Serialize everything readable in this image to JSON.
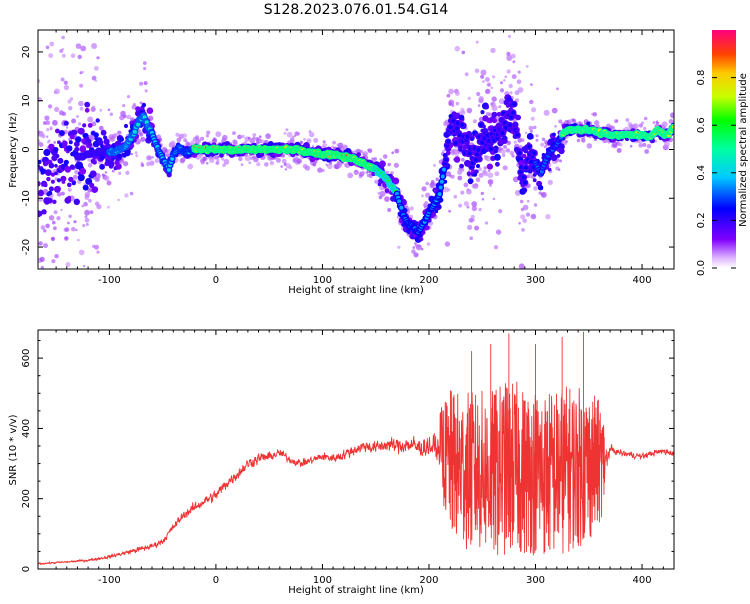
{
  "title": "S128.2023.076.01.54.G14",
  "chart_data": [
    {
      "type": "heatmap",
      "xlabel": "Height of straight line (km)",
      "ylabel": "Frequency (Hz)",
      "xlim": [
        -167,
        430
      ],
      "ylim": [
        -24.5,
        24.5
      ],
      "xticks": [
        -100,
        0,
        100,
        200,
        300,
        400
      ],
      "yticks": [
        -20,
        -10,
        0,
        10,
        20
      ],
      "colorbar": {
        "label": "Normalized spectral amplitude",
        "range": [
          0.0,
          1.0
        ],
        "ticks": [
          "0.0",
          "0.2",
          "0.4",
          "0.6",
          "0.8"
        ]
      },
      "ridge": {
        "height_km": [
          -165,
          -150,
          -130,
          -110,
          -95,
          -85,
          -78,
          -72,
          -68,
          -64,
          -58,
          -52,
          -47,
          -44,
          -40,
          -35,
          -30,
          -25,
          -20,
          0,
          20,
          50,
          75,
          90,
          100,
          110,
          120,
          130,
          140,
          150,
          160,
          170,
          175,
          180,
          185,
          190,
          195,
          200,
          205,
          210,
          215,
          220,
          230,
          240,
          250,
          260,
          270,
          275,
          280,
          283,
          286,
          288,
          290,
          292,
          295,
          300,
          305,
          310,
          315,
          320,
          325,
          330,
          335,
          340,
          350,
          360,
          370,
          380,
          390,
          400,
          405,
          410,
          415,
          420,
          425,
          430
        ],
        "frequency_hz": [
          -6,
          -3,
          -1.5,
          -0.5,
          -0.5,
          0.5,
          3,
          6,
          7,
          5,
          2,
          -1,
          -3,
          -4,
          -1,
          0.5,
          -0.5,
          -0.5,
          0,
          0,
          0,
          0,
          0,
          -0.5,
          -1,
          -1,
          -1.5,
          -2,
          -3,
          -4,
          -6,
          -9,
          -13,
          -15,
          -16,
          -17,
          -15,
          -13,
          -11,
          -9,
          -3,
          5,
          3,
          -2,
          3,
          2,
          5,
          8,
          7,
          2,
          -4,
          -6,
          -5,
          -3,
          -1,
          -3,
          -5,
          -2,
          0,
          1,
          3,
          4,
          4,
          4,
          4,
          3.5,
          3,
          3,
          3,
          3,
          2.5,
          3,
          4,
          3,
          3,
          5
        ]
      },
      "intensity_levels": [
        0.0,
        0.2,
        0.4,
        0.6,
        0.8,
        1.0
      ]
    },
    {
      "type": "line",
      "xlabel": "Height of straight line (km)",
      "ylabel": "SNR (10 * v/v)",
      "xlim": [
        -167,
        430
      ],
      "ylim": [
        0,
        680
      ],
      "xticks": [
        -100,
        0,
        100,
        200,
        300,
        400
      ],
      "yticks": [
        0,
        200,
        400,
        600
      ],
      "series": [
        {
          "color": "#ee3333",
          "envelope": {
            "x": [
              -167,
              -140,
              -120,
              -100,
              -80,
              -60,
              -50,
              -40,
              -30,
              -20,
              -10,
              0,
              10,
              20,
              30,
              40,
              50,
              60,
              70,
              80,
              90,
              100,
              110,
              120,
              130,
              140,
              150,
              160,
              170,
              180,
              190,
              200,
              210,
              220,
              230,
              240,
              250,
              260,
              270,
              280,
              290,
              300,
              310,
              320,
              330,
              340,
              350,
              360,
              365,
              370,
              380,
              390,
              400,
              410,
              420,
              430
            ],
            "center": [
              15,
              20,
              25,
              35,
              50,
              65,
              80,
              120,
              155,
              175,
              195,
              210,
              245,
              270,
              300,
              315,
              320,
              330,
              310,
              300,
              310,
              320,
              315,
              325,
              340,
              350,
              345,
              355,
              350,
              355,
              345,
              350,
              340,
              300,
              285,
              275,
              280,
              270,
              285,
              290,
              275,
              280,
              270,
              275,
              285,
              290,
              295,
              300,
              310,
              340,
              330,
              325,
              320,
              330,
              335,
              330
            ],
            "spread": [
              8,
              8,
              10,
              15,
              20,
              25,
              25,
              30,
              35,
              40,
              40,
              45,
              45,
              45,
              45,
              45,
              40,
              35,
              30,
              30,
              30,
              35,
              35,
              40,
              45,
              50,
              50,
              55,
              60,
              70,
              80,
              90,
              110,
              210,
              220,
              230,
              230,
              240,
              250,
              250,
              240,
              240,
              240,
              240,
              240,
              230,
              220,
              180,
              120,
              30,
              25,
              25,
              25,
              25,
              25,
              30
            ],
            "peaks": [
              [
                35,
                0
              ],
              [
                62,
                0
              ],
              [
                92,
                0
              ],
              [
                205,
                0
              ],
              [
                240,
                620
              ],
              [
                258,
                640
              ],
              [
                275,
                670
              ],
              [
                300,
                640
              ],
              [
                325,
                660
              ],
              [
                345,
                675
              ]
            ]
          }
        }
      ]
    }
  ]
}
